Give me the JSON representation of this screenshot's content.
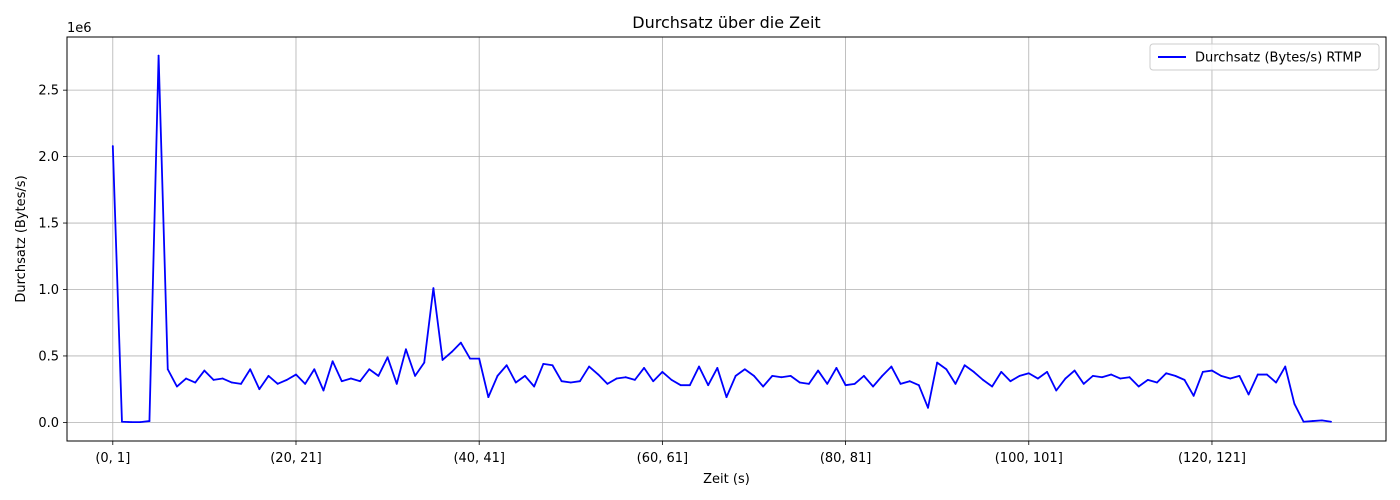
{
  "chart_data": {
    "type": "line",
    "title": "Durchsatz über die Zeit",
    "xlabel": "Zeit (s)",
    "ylabel": "Durchsatz (Bytes/s)",
    "y_scale_label": "1e6",
    "xlim": [
      -5,
      139
    ],
    "ylim": [
      -0.14,
      2.9
    ],
    "grid": true,
    "legend_position": "top-right",
    "x_ticks": [
      {
        "x": 0,
        "label": "(0, 1]"
      },
      {
        "x": 20,
        "label": "(20, 21]"
      },
      {
        "x": 40,
        "label": "(40, 41]"
      },
      {
        "x": 60,
        "label": "(60, 61]"
      },
      {
        "x": 80,
        "label": "(80, 81]"
      },
      {
        "x": 100,
        "label": "(100, 101]"
      },
      {
        "x": 120,
        "label": "(120, 121]"
      }
    ],
    "y_ticks": [
      {
        "y": 0.0,
        "label": "0.0"
      },
      {
        "y": 0.5,
        "label": "0.5"
      },
      {
        "y": 1.0,
        "label": "1.0"
      },
      {
        "y": 1.5,
        "label": "1.5"
      },
      {
        "y": 2.0,
        "label": "2.0"
      },
      {
        "y": 2.5,
        "label": "2.5"
      }
    ],
    "series": [
      {
        "name": "Durchsatz (Bytes/s) RTMP",
        "color": "#0000ff",
        "values": [
          2.08,
          0.005,
          0.002,
          0.002,
          0.01,
          2.76,
          0.4,
          0.27,
          0.33,
          0.3,
          0.39,
          0.32,
          0.33,
          0.3,
          0.29,
          0.4,
          0.25,
          0.35,
          0.29,
          0.32,
          0.36,
          0.29,
          0.4,
          0.24,
          0.46,
          0.31,
          0.33,
          0.31,
          0.4,
          0.35,
          0.49,
          0.29,
          0.55,
          0.35,
          0.45,
          1.01,
          0.47,
          0.53,
          0.6,
          0.48,
          0.48,
          0.19,
          0.35,
          0.43,
          0.3,
          0.35,
          0.27,
          0.44,
          0.43,
          0.31,
          0.3,
          0.31,
          0.42,
          0.36,
          0.29,
          0.33,
          0.34,
          0.32,
          0.41,
          0.31,
          0.38,
          0.32,
          0.28,
          0.28,
          0.42,
          0.28,
          0.41,
          0.19,
          0.35,
          0.4,
          0.35,
          0.27,
          0.35,
          0.34,
          0.35,
          0.3,
          0.29,
          0.39,
          0.29,
          0.41,
          0.28,
          0.29,
          0.35,
          0.27,
          0.35,
          0.42,
          0.29,
          0.31,
          0.28,
          0.11,
          0.45,
          0.4,
          0.29,
          0.43,
          0.38,
          0.32,
          0.27,
          0.38,
          0.31,
          0.35,
          0.37,
          0.33,
          0.38,
          0.24,
          0.33,
          0.39,
          0.29,
          0.35,
          0.34,
          0.36,
          0.33,
          0.34,
          0.27,
          0.32,
          0.3,
          0.37,
          0.35,
          0.32,
          0.2,
          0.38,
          0.39,
          0.35,
          0.33,
          0.35,
          0.21,
          0.36,
          0.36,
          0.3,
          0.42,
          0.14,
          0.005,
          0.01,
          0.015,
          0.005
        ]
      }
    ]
  }
}
